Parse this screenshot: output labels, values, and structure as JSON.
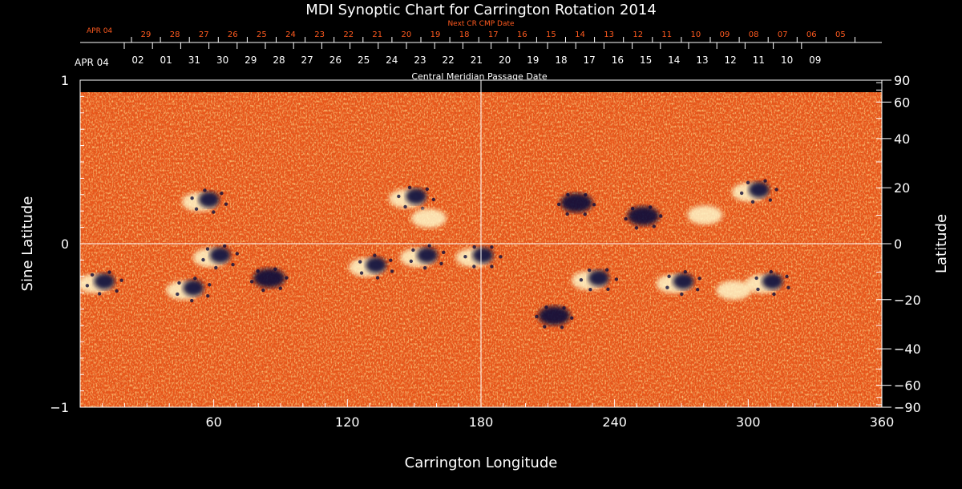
{
  "chart_data": {
    "type": "heatmap",
    "title": "MDI Synoptic Chart for Carrington Rotation 2014",
    "xlabel": "Carrington Longitude",
    "ylabel_left": "Sine Latitude",
    "ylabel_right": "Latitude",
    "xlim": [
      0,
      360
    ],
    "ylim": [
      -1,
      1
    ],
    "x_ticks": [
      "60",
      "120",
      "180",
      "240",
      "300",
      "360"
    ],
    "x_tick_values": [
      60,
      120,
      180,
      240,
      300,
      360
    ],
    "y_left_ticks": [
      {
        "value": 1,
        "label": "1"
      },
      {
        "value": 0,
        "label": "0"
      },
      {
        "value": -1,
        "label": "−1"
      }
    ],
    "y_right_ticks": [
      {
        "deg": 90,
        "label": "90"
      },
      {
        "deg": 60,
        "label": "60"
      },
      {
        "deg": 40,
        "label": "40"
      },
      {
        "deg": 20,
        "label": "20"
      },
      {
        "deg": 0,
        "label": "0"
      },
      {
        "deg": -20,
        "label": "−20"
      },
      {
        "deg": -40,
        "label": "−40"
      },
      {
        "deg": -60,
        "label": "−60"
      },
      {
        "deg": -90,
        "label": "−90"
      }
    ],
    "top_axis_label": "Next CR CMP Date",
    "top_axis_start": "APR 04",
    "top_axis_dates": [
      "29",
      "28",
      "27",
      "26",
      "25",
      "24",
      "23",
      "22",
      "21",
      "20",
      "19",
      "18",
      "17",
      "16",
      "15",
      "14",
      "13",
      "12",
      "11",
      "10",
      "09",
      "08",
      "07",
      "06",
      "05"
    ],
    "mid_axis_label": "Central Meridian Passage Date",
    "mid_axis_start": "APR 04",
    "mid_axis_dates": [
      "02",
      "01",
      "31",
      "30",
      "29",
      "28",
      "27",
      "26",
      "25",
      "24",
      "23",
      "22",
      "21",
      "20",
      "19",
      "18",
      "17",
      "16",
      "15",
      "14",
      "13",
      "12",
      "11",
      "10",
      "09"
    ],
    "color_background": "#e8561a",
    "color_positive": "#fff6c8",
    "color_negative": "#0e0c3a",
    "active_regions": [
      {
        "lon": 55,
        "sinlat": 0.26,
        "polarity": "mixed"
      },
      {
        "lon": 60,
        "sinlat": -0.08,
        "polarity": "mixed"
      },
      {
        "lon": 8,
        "sinlat": -0.24,
        "polarity": "mixed"
      },
      {
        "lon": 48,
        "sinlat": -0.28,
        "polarity": "mixed"
      },
      {
        "lon": 82,
        "sinlat": -0.22,
        "polarity": "negative"
      },
      {
        "lon": 148,
        "sinlat": 0.28,
        "polarity": "mixed"
      },
      {
        "lon": 158,
        "sinlat": 0.16,
        "polarity": "positive"
      },
      {
        "lon": 130,
        "sinlat": -0.14,
        "polarity": "mixed"
      },
      {
        "lon": 153,
        "sinlat": -0.08,
        "polarity": "mixed"
      },
      {
        "lon": 178,
        "sinlat": -0.08,
        "polarity": "mixed"
      },
      {
        "lon": 220,
        "sinlat": 0.24,
        "polarity": "negative"
      },
      {
        "lon": 250,
        "sinlat": 0.16,
        "polarity": "negative"
      },
      {
        "lon": 282,
        "sinlat": 0.18,
        "polarity": "positive"
      },
      {
        "lon": 302,
        "sinlat": 0.32,
        "polarity": "mixed"
      },
      {
        "lon": 230,
        "sinlat": -0.22,
        "polarity": "mixed"
      },
      {
        "lon": 268,
        "sinlat": -0.24,
        "polarity": "mixed"
      },
      {
        "lon": 295,
        "sinlat": -0.28,
        "polarity": "positive"
      },
      {
        "lon": 308,
        "sinlat": -0.24,
        "polarity": "mixed"
      },
      {
        "lon": 210,
        "sinlat": -0.45,
        "polarity": "negative"
      }
    ]
  }
}
